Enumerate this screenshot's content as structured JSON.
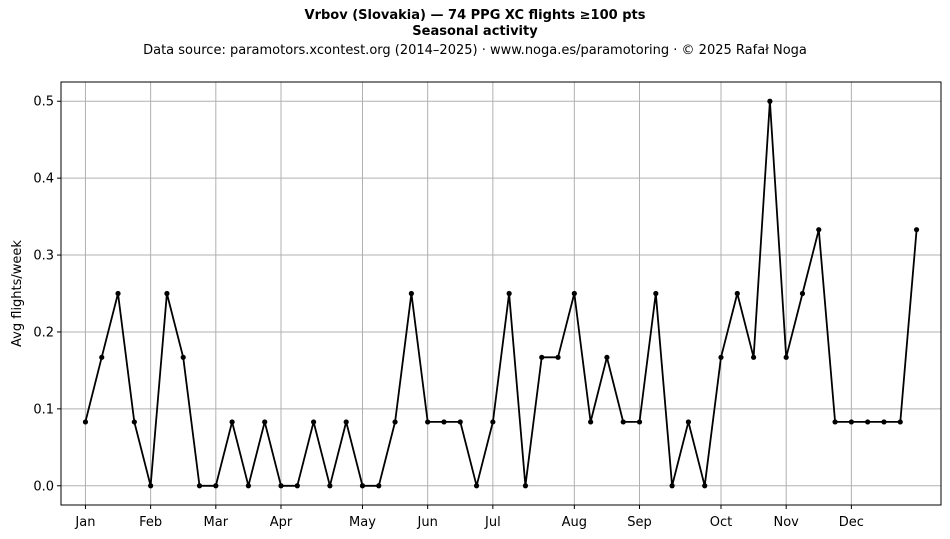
{
  "chart_data": {
    "type": "line",
    "title": "Vrbov (Slovakia)  —  74 PPG XC flights ≥100 pts",
    "subtitle": "Seasonal activity",
    "source_line": "Data source: paramotors.xcontest.org (2014–2025)  ·  www.noga.es/paramotoring  ·  © 2025 Rafał Noga",
    "xlabel": "",
    "ylabel": "Avg flights/week",
    "x_range": [
      -1.5,
      52.5
    ],
    "ylim": [
      -0.025,
      0.525
    ],
    "grid": true,
    "line_color": "#000000",
    "grid_color": "#b0b0b0",
    "month_ticks": [
      {
        "label": "Jan",
        "week": 0
      },
      {
        "label": "Feb",
        "week": 4
      },
      {
        "label": "Mar",
        "week": 8
      },
      {
        "label": "Apr",
        "week": 12
      },
      {
        "label": "May",
        "week": 17
      },
      {
        "label": "Jun",
        "week": 21
      },
      {
        "label": "Jul",
        "week": 25
      },
      {
        "label": "Aug",
        "week": 30
      },
      {
        "label": "Sep",
        "week": 34
      },
      {
        "label": "Oct",
        "week": 39
      },
      {
        "label": "Nov",
        "week": 43
      },
      {
        "label": "Dec",
        "week": 47
      }
    ],
    "y_ticks": [
      "0.0",
      "0.1",
      "0.2",
      "0.3",
      "0.4",
      "0.5"
    ],
    "x": [
      0,
      1,
      2,
      3,
      4,
      5,
      6,
      7,
      8,
      9,
      10,
      11,
      12,
      13,
      14,
      15,
      16,
      17,
      18,
      19,
      20,
      21,
      22,
      23,
      24,
      25,
      26,
      27,
      28,
      29,
      30,
      31,
      32,
      33,
      34,
      35,
      36,
      37,
      38,
      39,
      40,
      41,
      42,
      43,
      44,
      45,
      46,
      47,
      48,
      49,
      50,
      51
    ],
    "values": [
      0.083,
      0.167,
      0.25,
      0.083,
      0.0,
      0.25,
      0.167,
      0.0,
      0.0,
      0.083,
      0.0,
      0.083,
      0.0,
      0.0,
      0.083,
      0.0,
      0.083,
      0.0,
      0.0,
      0.083,
      0.25,
      0.083,
      0.083,
      0.083,
      0.0,
      0.083,
      0.25,
      0.0,
      0.167,
      0.167,
      0.25,
      0.083,
      0.167,
      0.083,
      0.083,
      0.25,
      0.0,
      0.083,
      0.0,
      0.167,
      0.25,
      0.167,
      0.5,
      0.167,
      0.25,
      0.333,
      0.083,
      0.083,
      0.083,
      0.083,
      0.083,
      0.333
    ]
  }
}
